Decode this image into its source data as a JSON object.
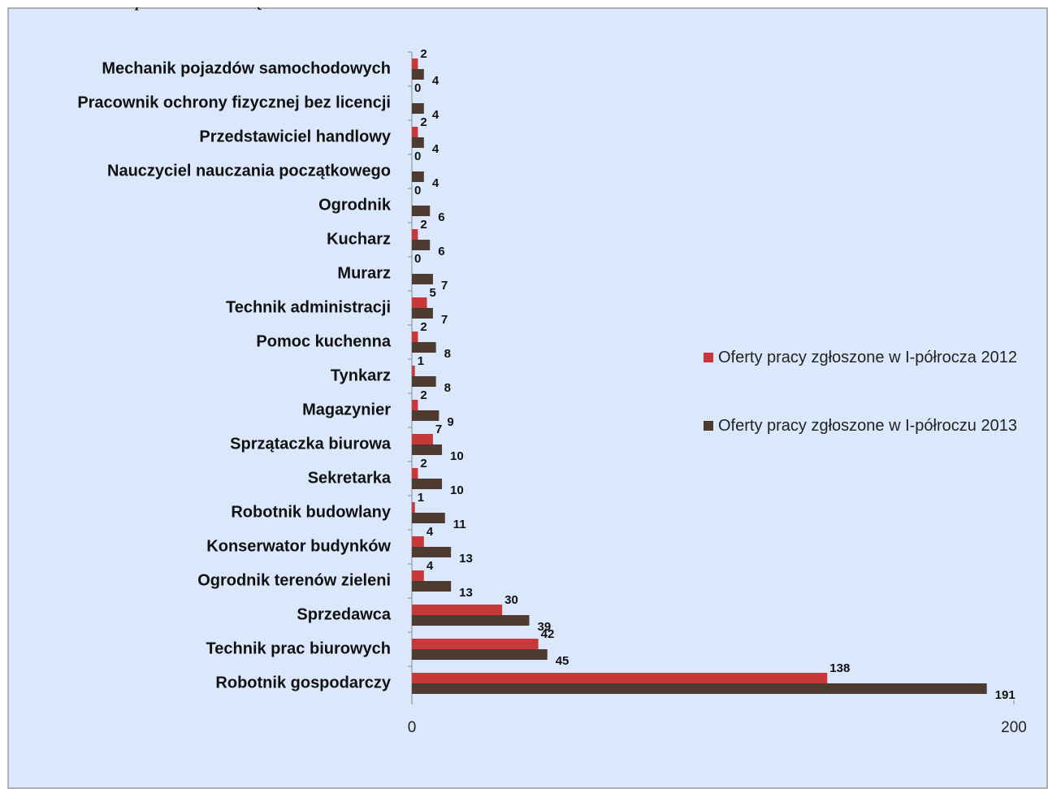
{
  "chart_data": {
    "type": "hbar",
    "title": "w powiecie ostrołęckim.",
    "categories": [
      "Mechanik pojazdów samochodowych",
      "Pracownik ochrony fizycznej bez licencji",
      "Przedstawiciel handlowy",
      "Nauczyciel nauczania początkowego",
      "Ogrodnik",
      "Kucharz",
      "Murarz",
      "Technik administracji",
      "Pomoc kuchenna",
      "Tynkarz",
      "Magazynier",
      "Sprzątaczka biurowa",
      "Sekretarka",
      "Robotnik budowlany",
      "Konserwator budynków",
      "Ogrodnik terenów zieleni",
      "Sprzedawca",
      "Technik prac biurowych",
      "Robotnik gospodarczy"
    ],
    "series": [
      {
        "name": "Oferty pracy zgłoszone w I-półrocza 2012",
        "color": "#c8383a",
        "values": [
          2,
          0,
          2,
          0,
          0,
          2,
          0,
          5,
          2,
          1,
          2,
          7,
          2,
          1,
          4,
          4,
          30,
          42,
          138
        ]
      },
      {
        "name": "Oferty pracy zgłoszone w I-półroczu 2013",
        "color": "#4e3b30",
        "values": [
          4,
          4,
          4,
          4,
          6,
          6,
          7,
          7,
          8,
          8,
          9,
          10,
          10,
          11,
          13,
          13,
          39,
          45,
          191
        ]
      }
    ],
    "xlim": [
      0,
      200
    ],
    "xticks": [
      0,
      200
    ],
    "legend": "right"
  }
}
